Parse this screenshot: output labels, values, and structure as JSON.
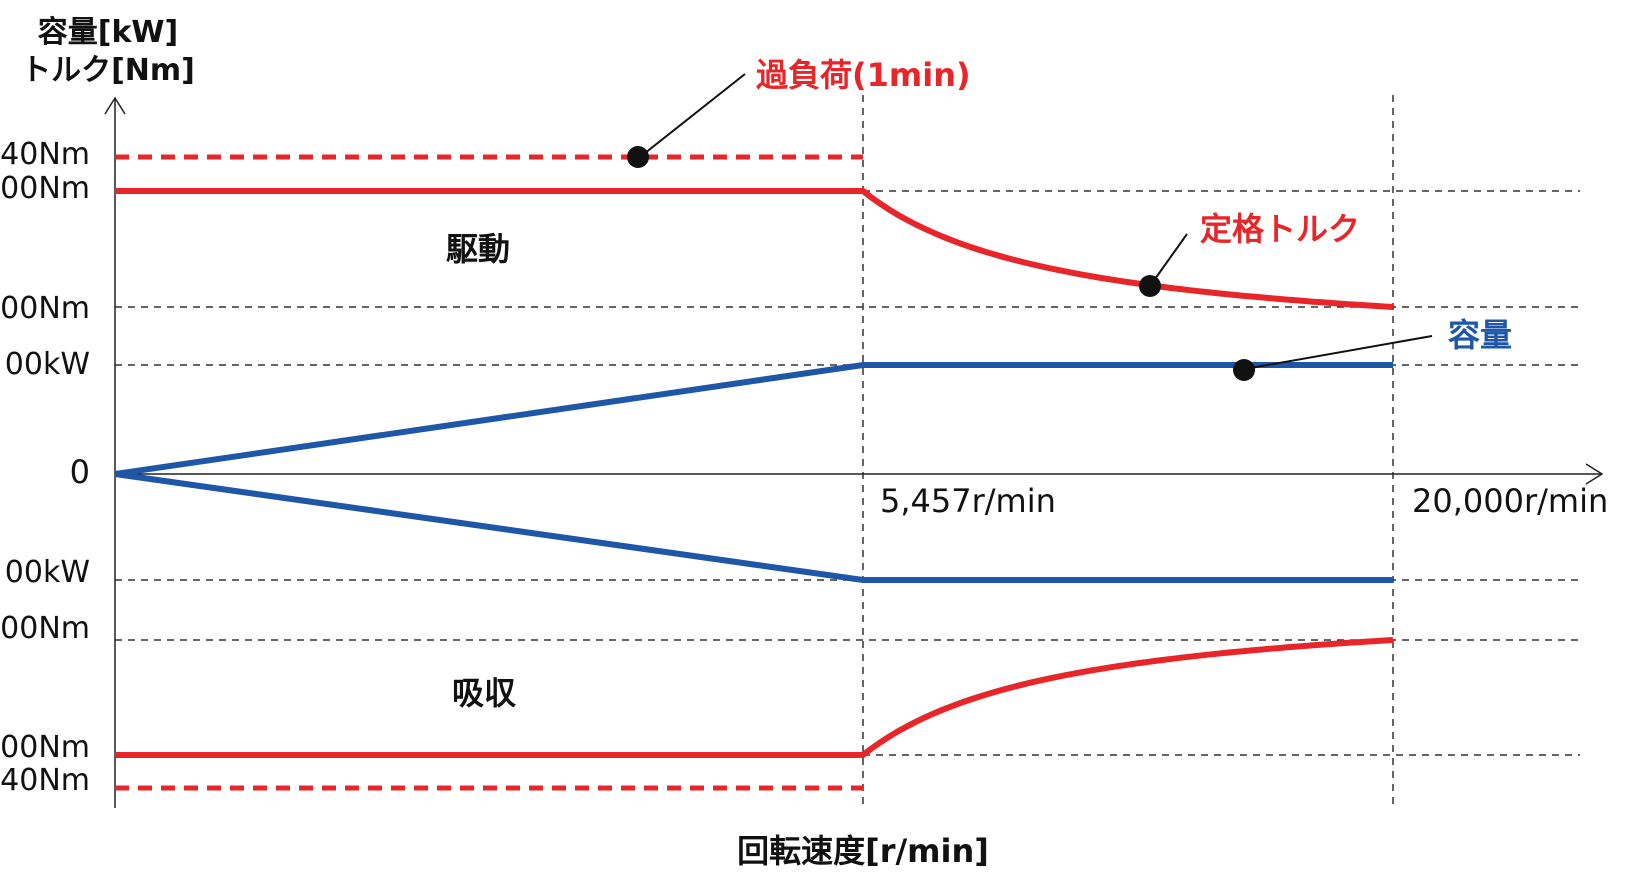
{
  "chart_data": {
    "type": "line",
    "ylabel_lines": [
      "容量[kW]",
      "トルク[Nm]"
    ],
    "xlabel": "回転速度[r/min]",
    "x_ticks": [
      "5,457r/min",
      "20,000r/min"
    ],
    "y_ticks_top": [
      "40Nm",
      "00Nm",
      "00Nm",
      "00kW"
    ],
    "y_tick_zero": "0",
    "y_ticks_bottom": [
      "00kW",
      "00Nm",
      "00Nm",
      "40Nm"
    ],
    "region_labels": {
      "drive": "駆動",
      "absorb": "吸収"
    },
    "annotations": {
      "overload": "過負荷(1min)",
      "rated_torque": "定格トルク",
      "capacity": "容量"
    },
    "colors": {
      "torque": "#e8262a",
      "capacity": "#1f57a8",
      "axis": "#333333"
    },
    "x": [
      0,
      5457,
      20000
    ],
    "series": [
      {
        "name": "過負荷(1min)",
        "style": "dashed",
        "x": [
          0,
          5457
        ],
        "y": [
          1.13,
          1.13
        ]
      },
      {
        "name": "定格トルク",
        "x": [
          0,
          5457,
          20000
        ],
        "y": [
          1.0,
          1.0,
          0.2729
        ],
        "shape": "constant-then-hyperbolic"
      },
      {
        "name": "容量",
        "x": [
          0,
          5457,
          20000
        ],
        "y": [
          0,
          1.0,
          1.0
        ]
      },
      {
        "x": [
          0,
          5457,
          20000
        ],
        "y": [
          0,
          -1.0,
          -1.0
        ]
      },
      {
        "x": [
          0,
          5457,
          20000
        ],
        "y": [
          -1.0,
          -1.0,
          -0.2729
        ],
        "shape": "constant-then-hyperbolic"
      },
      {
        "style": "dashed",
        "x": [
          0,
          5457
        ],
        "y": [
          -1.13,
          -1.13
        ]
      }
    ]
  }
}
